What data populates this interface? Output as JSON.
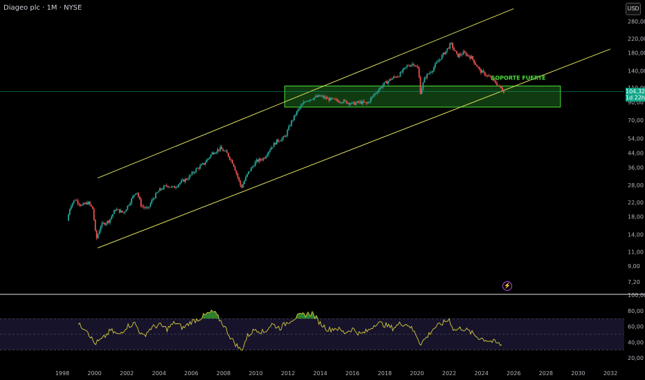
{
  "header": {
    "title": "Diageo plc · 1M · NYSE",
    "currency": "USD"
  },
  "price_tag": {
    "price": "104,32",
    "countdown": "1d 22h"
  },
  "annotation": {
    "label": "SOPORTE FUERTE"
  },
  "colors": {
    "up": "#26a69a",
    "down": "#ef5350",
    "channel": "#e0e060",
    "zone_fill": "#1d6b1d",
    "zone_border": "#4cdc3c",
    "rsi_line": "#d6cf3c",
    "rsi_band": "#1a1530"
  },
  "chart_data": [
    {
      "type": "candlestick",
      "scale": "log",
      "ylim": [
        6.5,
        330
      ],
      "xlim": [
        1997,
        2033
      ],
      "yticks": [
        "280,00",
        "220,00",
        "180,00",
        "140,00",
        "110,00",
        "90,00",
        "70,00",
        "54,00",
        "44,00",
        "36,00",
        "28,00",
        "22,00",
        "18,00",
        "14,00",
        "11,00",
        "9,00",
        "7,20"
      ],
      "ytick_values": [
        280,
        220,
        180,
        140,
        110,
        90,
        70,
        54,
        44,
        36,
        28,
        22,
        18,
        14,
        11,
        9,
        7.2
      ],
      "xticks": [
        "1998",
        "2000",
        "2002",
        "2004",
        "2006",
        "2008",
        "2010",
        "2012",
        "2014",
        "2016",
        "2018",
        "2020",
        "2022",
        "2024",
        "2026",
        "2028",
        "2030",
        "2032"
      ],
      "xtick_values": [
        1998,
        2000,
        2002,
        2004,
        2006,
        2008,
        2010,
        2012,
        2014,
        2016,
        2018,
        2020,
        2022,
        2024,
        2026,
        2028,
        2030,
        2032
      ],
      "price_path": [
        [
          1998.3,
          17
        ],
        [
          1998.5,
          21
        ],
        [
          1998.8,
          23
        ],
        [
          1999.2,
          21
        ],
        [
          1999.6,
          22
        ],
        [
          1999.9,
          20
        ],
        [
          2000.1,
          13
        ],
        [
          2000.4,
          16
        ],
        [
          2000.9,
          17
        ],
        [
          2001.3,
          20
        ],
        [
          2001.8,
          19
        ],
        [
          2002.3,
          23
        ],
        [
          2002.6,
          26
        ],
        [
          2002.9,
          21
        ],
        [
          2003.3,
          20
        ],
        [
          2003.6,
          23
        ],
        [
          2004.0,
          26
        ],
        [
          2004.5,
          28
        ],
        [
          2004.9,
          27
        ],
        [
          2005.3,
          29
        ],
        [
          2005.8,
          31
        ],
        [
          2006.3,
          35
        ],
        [
          2006.8,
          38
        ],
        [
          2007.3,
          44
        ],
        [
          2007.8,
          47
        ],
        [
          2008.2,
          44
        ],
        [
          2008.6,
          38
        ],
        [
          2009.1,
          27
        ],
        [
          2009.5,
          33
        ],
        [
          2010.0,
          39
        ],
        [
          2010.5,
          41
        ],
        [
          2010.9,
          47
        ],
        [
          2011.3,
          52
        ],
        [
          2011.8,
          55
        ],
        [
          2012.2,
          68
        ],
        [
          2012.6,
          80
        ],
        [
          2013.1,
          92
        ],
        [
          2013.6,
          96
        ],
        [
          2014.0,
          98
        ],
        [
          2014.5,
          94
        ],
        [
          2015.0,
          92
        ],
        [
          2015.5,
          91
        ],
        [
          2016.0,
          88
        ],
        [
          2016.5,
          90
        ],
        [
          2016.9,
          88
        ],
        [
          2017.4,
          102
        ],
        [
          2017.9,
          115
        ],
        [
          2018.4,
          125
        ],
        [
          2018.9,
          132
        ],
        [
          2019.4,
          150
        ],
        [
          2019.8,
          155
        ],
        [
          2020.1,
          142
        ],
        [
          2020.2,
          102
        ],
        [
          2020.5,
          128
        ],
        [
          2020.9,
          140
        ],
        [
          2021.3,
          160
        ],
        [
          2021.8,
          185
        ],
        [
          2022.1,
          205
        ],
        [
          2022.5,
          172
        ],
        [
          2022.9,
          180
        ],
        [
          2023.4,
          168
        ],
        [
          2023.9,
          140
        ],
        [
          2024.4,
          130
        ],
        [
          2024.9,
          118
        ],
        [
          2025.4,
          104.32
        ]
      ],
      "channel_upper": [
        [
          2000.2,
          31
        ],
        [
          2026.0,
          335
        ]
      ],
      "channel_lower": [
        [
          2000.2,
          11.6
        ],
        [
          2032.0,
          190
        ]
      ],
      "zone": {
        "x": [
          2011.8,
          2028.9
        ],
        "y": [
          84,
          113
        ]
      },
      "current_price": 104.32
    },
    {
      "type": "line",
      "name": "RSI",
      "ylim": [
        14,
        104
      ],
      "yticks": [
        "100,00",
        "80,00",
        "60,00",
        "40,00",
        "20,00"
      ],
      "ytick_values": [
        100,
        80,
        60,
        40,
        20
      ],
      "bands": [
        70,
        50,
        30
      ],
      "series": [
        [
          1999.0,
          62
        ],
        [
          1999.5,
          57
        ],
        [
          2000.0,
          38
        ],
        [
          2000.5,
          44
        ],
        [
          2001.0,
          55
        ],
        [
          2001.5,
          49
        ],
        [
          2002.0,
          60
        ],
        [
          2002.5,
          64
        ],
        [
          2003.0,
          47
        ],
        [
          2003.5,
          58
        ],
        [
          2004.0,
          62
        ],
        [
          2004.5,
          57
        ],
        [
          2005.0,
          65
        ],
        [
          2005.5,
          58
        ],
        [
          2006.0,
          66
        ],
        [
          2006.5,
          70
        ],
        [
          2007.0,
          76
        ],
        [
          2007.4,
          79
        ],
        [
          2008.0,
          62
        ],
        [
          2008.5,
          44
        ],
        [
          2009.1,
          29
        ],
        [
          2009.5,
          48
        ],
        [
          2010.0,
          57
        ],
        [
          2010.5,
          52
        ],
        [
          2011.0,
          63
        ],
        [
          2011.5,
          58
        ],
        [
          2012.0,
          66
        ],
        [
          2012.5,
          72
        ],
        [
          2013.0,
          75
        ],
        [
          2013.5,
          77
        ],
        [
          2014.0,
          64
        ],
        [
          2014.5,
          56
        ],
        [
          2015.0,
          58
        ],
        [
          2015.5,
          52
        ],
        [
          2016.0,
          57
        ],
        [
          2016.5,
          50
        ],
        [
          2017.0,
          55
        ],
        [
          2017.5,
          65
        ],
        [
          2018.0,
          62
        ],
        [
          2018.5,
          58
        ],
        [
          2019.0,
          64
        ],
        [
          2019.5,
          62
        ],
        [
          2020.0,
          48
        ],
        [
          2020.2,
          38
        ],
        [
          2020.6,
          46
        ],
        [
          2021.0,
          57
        ],
        [
          2021.5,
          63
        ],
        [
          2022.0,
          69
        ],
        [
          2022.3,
          55
        ],
        [
          2022.8,
          58
        ],
        [
          2023.3,
          53
        ],
        [
          2023.8,
          46
        ],
        [
          2024.3,
          43
        ],
        [
          2024.8,
          40
        ],
        [
          2025.3,
          36
        ]
      ]
    }
  ]
}
